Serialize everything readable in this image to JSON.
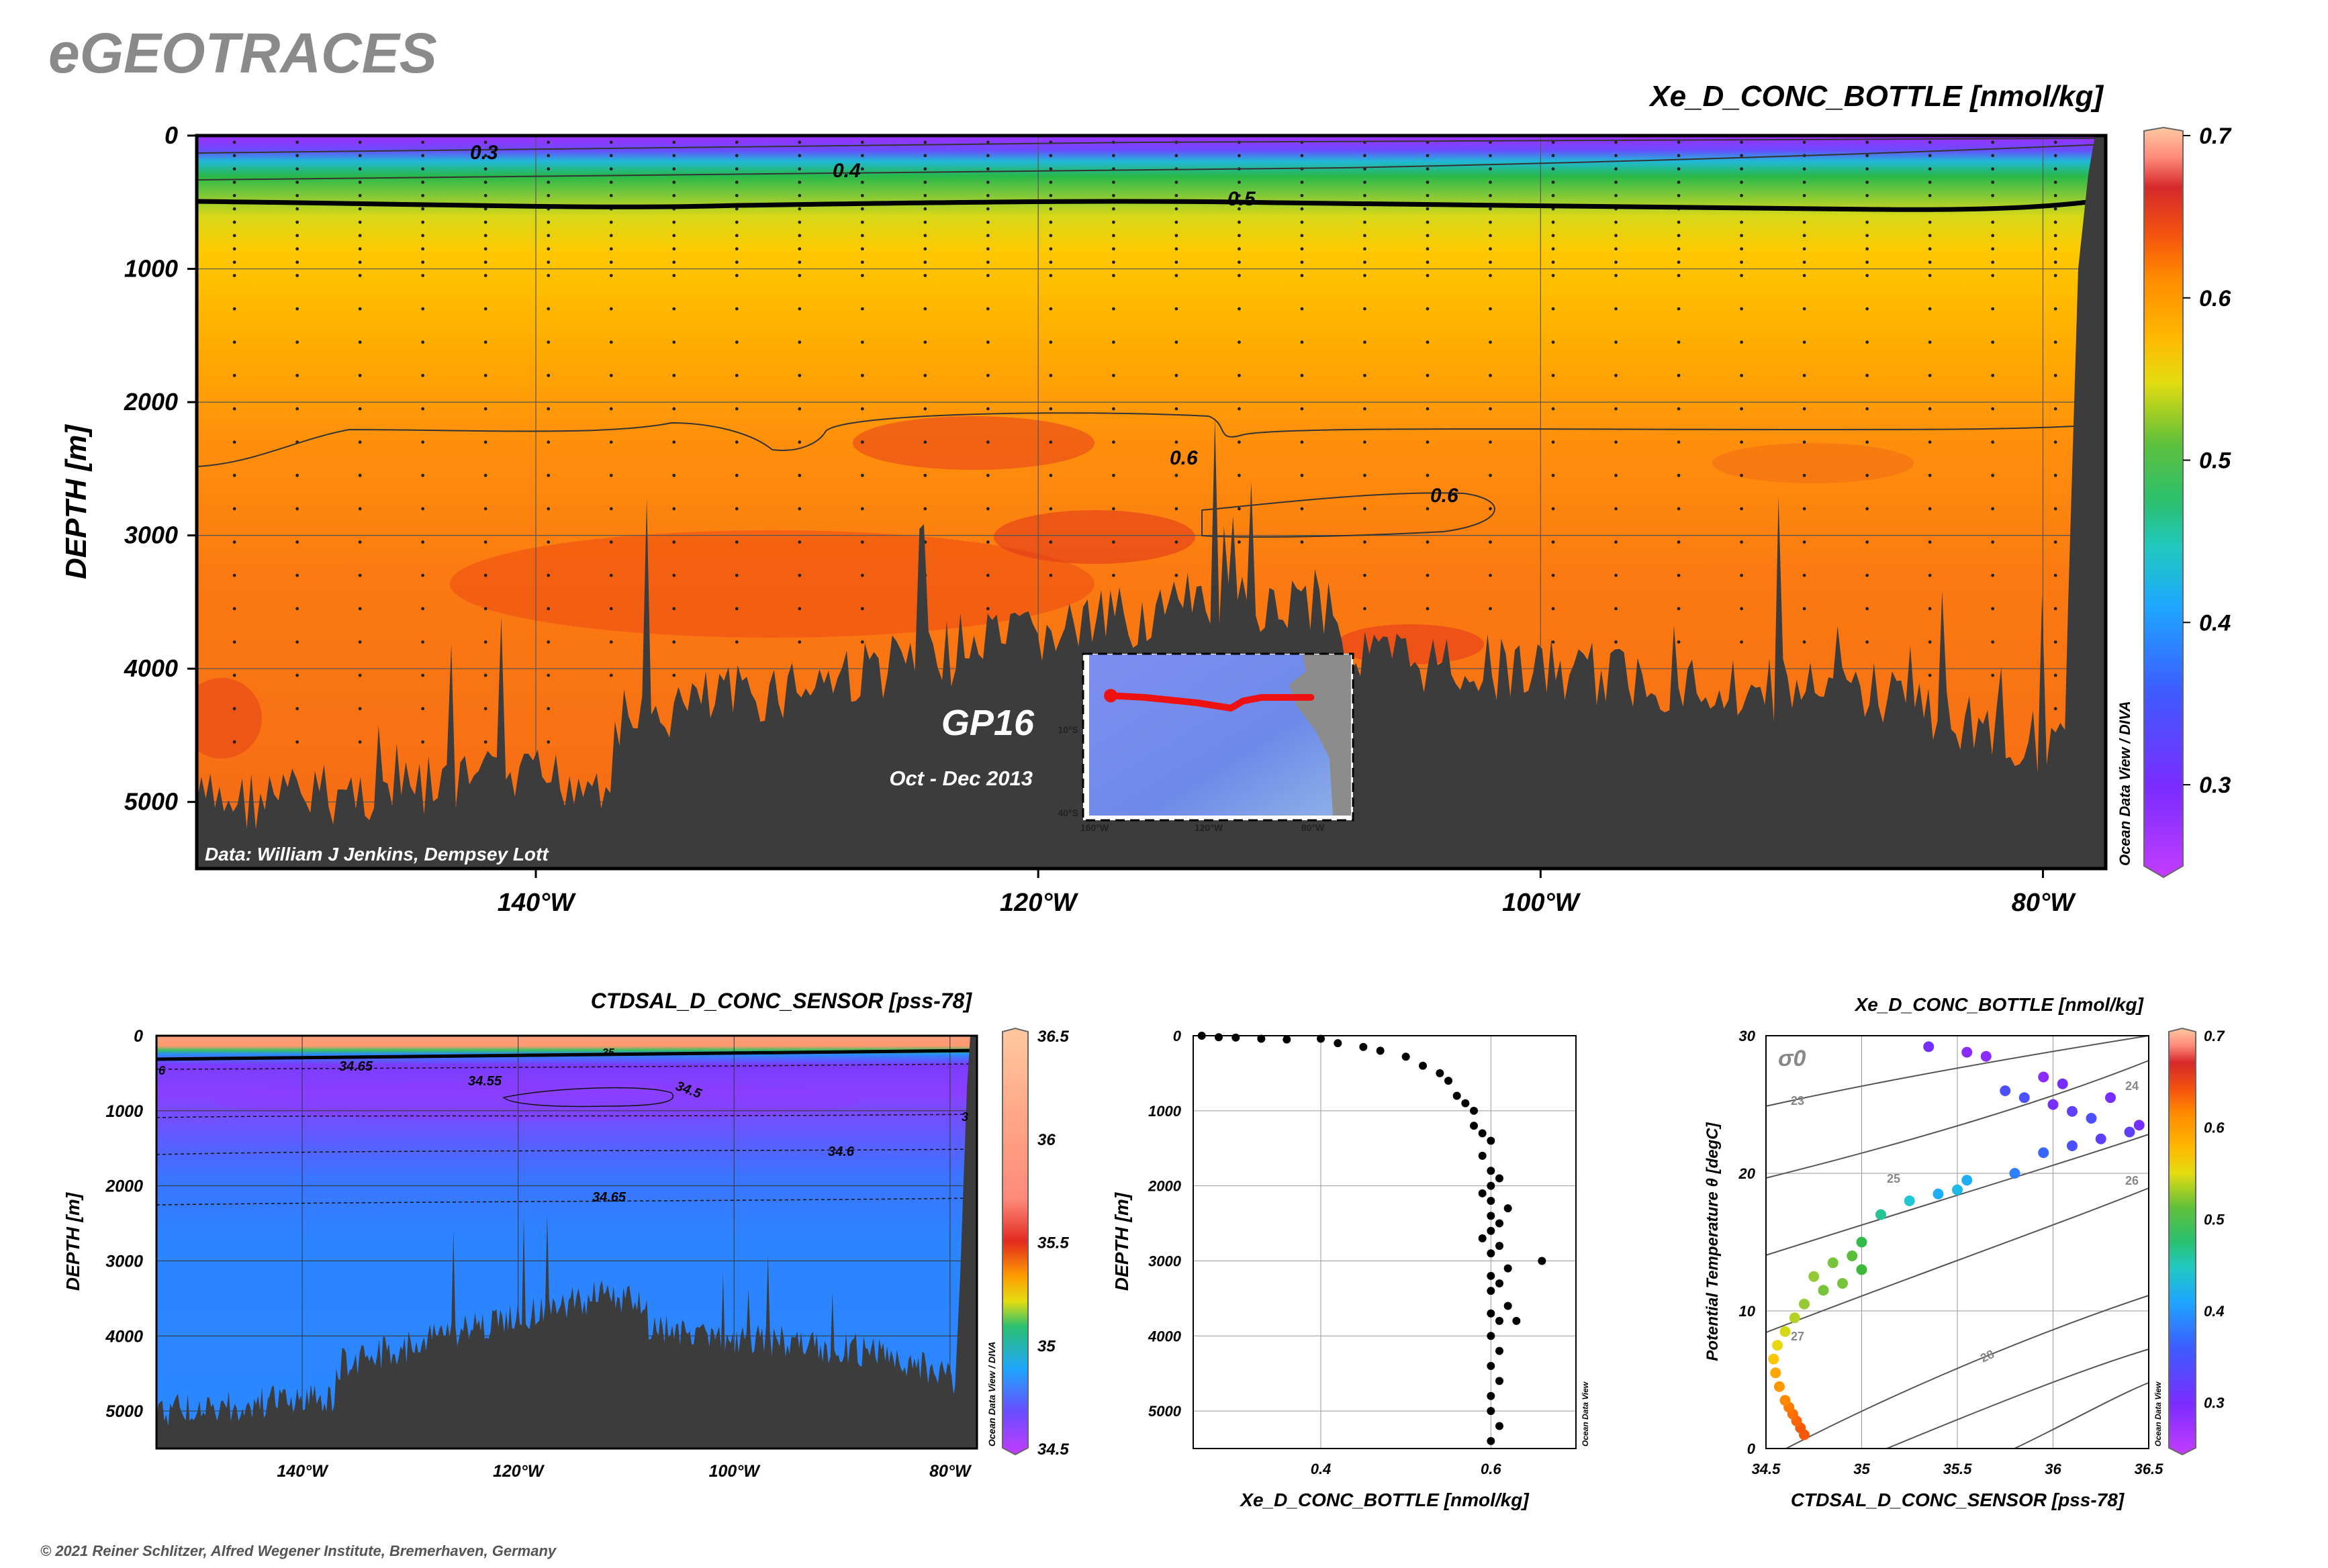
{
  "brand": "eGEOTRACES",
  "copyright": "© 2021 Reiner Schlitzer, Alfred Wegener Institute, Bremerhaven, Germany",
  "colorscale": [
    "#b02cff",
    "#7a2cff",
    "#3d5cff",
    "#1ea6ff",
    "#20c9d0",
    "#2ac070",
    "#38b83a",
    "#8cc83a",
    "#e4dc10",
    "#ffc300",
    "#ff9500",
    "#ff7000",
    "#f45010",
    "#e62a1a",
    "#c62828",
    "#ff8a7a",
    "#ffc8a0"
  ],
  "chart_data": [
    {
      "id": "main_section",
      "type": "heatmap",
      "title": "Xe_D_CONC_BOTTLE [nmol/kg]",
      "ylabel": "DEPTH [m]",
      "xlabel": "",
      "x_ticks": [
        "140°W",
        "120°W",
        "100°W",
        "80°W"
      ],
      "x_tick_values": [
        -140,
        -120,
        -100,
        -80
      ],
      "xlim": [
        -153.5,
        -77.5
      ],
      "y_ticks": [
        "0",
        "1000",
        "2000",
        "3000",
        "4000",
        "5000"
      ],
      "y_tick_values": [
        0,
        1000,
        2000,
        3000,
        4000,
        5000
      ],
      "ylim": [
        5500,
        0
      ],
      "colorbar_ticks": [
        "0.7",
        "0.6",
        "0.5",
        "0.4",
        "0.3"
      ],
      "colorbar_values": [
        0.7,
        0.6,
        0.5,
        0.4,
        0.3
      ],
      "colorbar_range": [
        0.25,
        0.7
      ],
      "contour_labels": [
        "0.3",
        "0.4",
        "0.5",
        "0.6",
        "0.6"
      ],
      "layers": [
        {
          "depth": 0,
          "value": 0.28
        },
        {
          "depth": 150,
          "value": 0.36
        },
        {
          "depth": 300,
          "value": 0.44
        },
        {
          "depth": 500,
          "value": 0.5
        },
        {
          "depth": 1000,
          "value": 0.55
        },
        {
          "depth": 1500,
          "value": 0.57
        },
        {
          "depth": 2200,
          "value": 0.6
        },
        {
          "depth": 3000,
          "value": 0.61
        },
        {
          "depth": 5000,
          "value": 0.61
        }
      ],
      "data_credit": "Data: William J Jenkins, Dempsey Lott",
      "cruise": "GP16",
      "period": "Oct - Dec 2013",
      "inset": {
        "lat_labels": [
          "10°S",
          "40°S"
        ],
        "lon_labels": [
          "160°W",
          "120°W",
          "80°W"
        ],
        "track_lon": [
          -153,
          -142,
          -125,
          -114,
          -110,
          -104,
          -88
        ],
        "track_lat": [
          -11.5,
          -12,
          -13.5,
          -15,
          -13,
          -12,
          -12
        ]
      },
      "watermark": "Ocean Data View / DIVA"
    },
    {
      "id": "salinity_section",
      "type": "heatmap",
      "title": "CTDSAL_D_CONC_SENSOR [pss-78]",
      "ylabel": "DEPTH [m]",
      "xlabel": "",
      "x_ticks": [
        "140°W",
        "120°W",
        "100°W",
        "80°W"
      ],
      "x_tick_values": [
        -140,
        -120,
        -100,
        -80
      ],
      "xlim": [
        -153.5,
        -77.5
      ],
      "y_ticks": [
        "0",
        "1000",
        "2000",
        "3000",
        "4000",
        "5000"
      ],
      "y_tick_values": [
        0,
        1000,
        2000,
        3000,
        4000,
        5000
      ],
      "ylim": [
        5500,
        0
      ],
      "colorbar_ticks": [
        "36.5",
        "36",
        "35.5",
        "35",
        "34.5"
      ],
      "colorbar_values": [
        36.5,
        36,
        35.5,
        35,
        34.5
      ],
      "colorbar_range": [
        34.5,
        36.5
      ],
      "contour_labels": [
        "34.65",
        "34.55",
        "34.5",
        "34.6",
        "34.65",
        "35",
        "6",
        "3"
      ],
      "layers": [
        {
          "depth": 0,
          "value": 36.3
        },
        {
          "depth": 80,
          "value": 36.0
        },
        {
          "depth": 200,
          "value": 35.0
        },
        {
          "depth": 300,
          "value": 34.66
        },
        {
          "depth": 700,
          "value": 34.52
        },
        {
          "depth": 1000,
          "value": 34.55
        },
        {
          "depth": 1500,
          "value": 34.6
        },
        {
          "depth": 2500,
          "value": 34.67
        },
        {
          "depth": 5500,
          "value": 34.69
        }
      ],
      "watermark": "Ocean Data View / DIVA"
    },
    {
      "id": "profile",
      "type": "scatter",
      "xlabel": "Xe_D_CONC_BOTTLE [nmol/kg]",
      "ylabel": "DEPTH [m]",
      "x_ticks": [
        "0.4",
        "0.6"
      ],
      "x_tick_values": [
        0.4,
        0.6
      ],
      "xlim": [
        0.25,
        0.7
      ],
      "y_ticks": [
        "0",
        "1000",
        "2000",
        "3000",
        "4000",
        "5000"
      ],
      "y_tick_values": [
        0,
        1000,
        2000,
        3000,
        4000,
        5000
      ],
      "ylim": [
        5500,
        0
      ],
      "points": [
        [
          0.26,
          0
        ],
        [
          0.28,
          20
        ],
        [
          0.3,
          25
        ],
        [
          0.33,
          40
        ],
        [
          0.36,
          50
        ],
        [
          0.4,
          40
        ],
        [
          0.42,
          100
        ],
        [
          0.45,
          150
        ],
        [
          0.47,
          200
        ],
        [
          0.5,
          280
        ],
        [
          0.52,
          400
        ],
        [
          0.54,
          500
        ],
        [
          0.55,
          600
        ],
        [
          0.56,
          800
        ],
        [
          0.57,
          900
        ],
        [
          0.58,
          1000
        ],
        [
          0.58,
          1200
        ],
        [
          0.59,
          1300
        ],
        [
          0.6,
          1400
        ],
        [
          0.59,
          1600
        ],
        [
          0.6,
          1800
        ],
        [
          0.61,
          1900
        ],
        [
          0.6,
          2000
        ],
        [
          0.59,
          2100
        ],
        [
          0.6,
          2200
        ],
        [
          0.62,
          2300
        ],
        [
          0.6,
          2400
        ],
        [
          0.61,
          2500
        ],
        [
          0.6,
          2600
        ],
        [
          0.59,
          2700
        ],
        [
          0.61,
          2800
        ],
        [
          0.6,
          2900
        ],
        [
          0.66,
          3000
        ],
        [
          0.62,
          3100
        ],
        [
          0.6,
          3200
        ],
        [
          0.61,
          3300
        ],
        [
          0.6,
          3400
        ],
        [
          0.62,
          3600
        ],
        [
          0.6,
          3700
        ],
        [
          0.61,
          3800
        ],
        [
          0.63,
          3800
        ],
        [
          0.6,
          4000
        ],
        [
          0.61,
          4200
        ],
        [
          0.6,
          4400
        ],
        [
          0.61,
          4600
        ],
        [
          0.6,
          4800
        ],
        [
          0.6,
          5000
        ],
        [
          0.61,
          5200
        ],
        [
          0.6,
          5400
        ]
      ],
      "watermark": "Ocean Data View"
    },
    {
      "id": "ts_diagram",
      "type": "scatter",
      "title": "Xe_D_CONC_BOTTLE [nmol/kg]",
      "xlabel": "CTDSAL_D_CONC_SENSOR [pss-78]",
      "ylabel": "Potential Temperature θ [degC]",
      "x_ticks": [
        "34.5",
        "35",
        "35.5",
        "36",
        "36.5"
      ],
      "x_tick_values": [
        34.5,
        35,
        35.5,
        36,
        36.5
      ],
      "xlim": [
        34.5,
        36.5
      ],
      "y_ticks": [
        "0",
        "10",
        "20",
        "30"
      ],
      "y_tick_values": [
        0,
        10,
        20,
        30
      ],
      "ylim": [
        0,
        30
      ],
      "density_labels": [
        "σ0",
        "23",
        "24",
        "25",
        "26",
        "27",
        "28"
      ],
      "colorbar_ticks": [
        "0.7",
        "0.6",
        "0.5",
        "0.4",
        "0.3"
      ],
      "colorbar_values": [
        0.7,
        0.6,
        0.5,
        0.4,
        0.3
      ],
      "colorbar_range": [
        0.25,
        0.7
      ],
      "points": [
        [
          34.7,
          1.0,
          0.58
        ],
        [
          34.68,
          1.5,
          0.58
        ],
        [
          34.66,
          2.0,
          0.57
        ],
        [
          34.64,
          2.5,
          0.56
        ],
        [
          34.62,
          3.0,
          0.55
        ],
        [
          34.6,
          3.5,
          0.54
        ],
        [
          34.57,
          4.5,
          0.53
        ],
        [
          34.55,
          5.5,
          0.52
        ],
        [
          34.54,
          6.5,
          0.5
        ],
        [
          34.56,
          7.5,
          0.48
        ],
        [
          34.6,
          8.5,
          0.47
        ],
        [
          34.65,
          9.5,
          0.46
        ],
        [
          34.7,
          10.5,
          0.45
        ],
        [
          34.8,
          11.5,
          0.44
        ],
        [
          34.9,
          12.0,
          0.44
        ],
        [
          35.0,
          13.0,
          0.42
        ],
        [
          34.95,
          14.0,
          0.43
        ],
        [
          35.0,
          15.0,
          0.41
        ],
        [
          34.75,
          12.5,
          0.45
        ],
        [
          34.85,
          13.5,
          0.44
        ],
        [
          35.1,
          17.0,
          0.38
        ],
        [
          35.25,
          18.0,
          0.36
        ],
        [
          35.4,
          18.5,
          0.34
        ],
        [
          35.55,
          19.5,
          0.34
        ],
        [
          35.5,
          18.8,
          0.35
        ],
        [
          35.8,
          20.0,
          0.32
        ],
        [
          35.95,
          21.5,
          0.31
        ],
        [
          36.1,
          22.0,
          0.3
        ],
        [
          36.25,
          22.5,
          0.29
        ],
        [
          36.4,
          23.0,
          0.29
        ],
        [
          36.45,
          23.5,
          0.28
        ],
        [
          36.1,
          24.5,
          0.29
        ],
        [
          36.0,
          25.0,
          0.28
        ],
        [
          35.85,
          25.5,
          0.3
        ],
        [
          36.05,
          26.5,
          0.28
        ],
        [
          35.95,
          27.0,
          0.27
        ],
        [
          36.2,
          24.0,
          0.3
        ],
        [
          36.3,
          25.5,
          0.28
        ],
        [
          35.65,
          28.5,
          0.27
        ],
        [
          35.55,
          28.8,
          0.27
        ],
        [
          35.35,
          29.2,
          0.28
        ],
        [
          35.75,
          26.0,
          0.3
        ]
      ],
      "watermark": "Ocean Data View"
    }
  ]
}
